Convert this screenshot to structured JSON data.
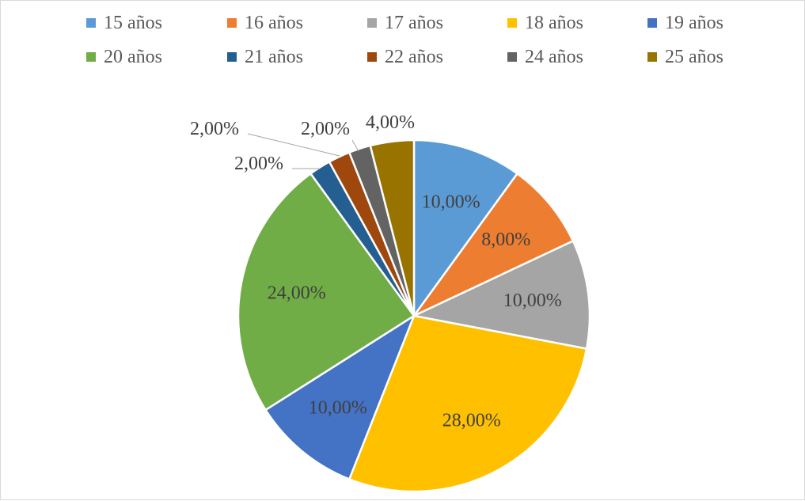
{
  "chart_data": {
    "type": "pie",
    "categories": [
      "15 años",
      "16 años",
      "17 años",
      "18 años",
      "19 años",
      "20 años",
      "21 años",
      "22 años",
      "24 años",
      "25 años"
    ],
    "values": [
      10,
      8,
      10,
      28,
      10,
      24,
      2,
      2,
      2,
      4
    ],
    "labels": [
      "10,00%",
      "8,00%",
      "10,00%",
      "28,00%",
      "10,00%",
      "24,00%",
      "2,00%",
      "2,00%",
      "2,00%",
      "4,00%"
    ],
    "colors": [
      "#5B9BD5",
      "#ED7D31",
      "#A5A5A5",
      "#FFC000",
      "#4472C4",
      "#70AD47",
      "#255E91",
      "#9E480E",
      "#636363",
      "#997300"
    ],
    "legend_position": "top"
  }
}
